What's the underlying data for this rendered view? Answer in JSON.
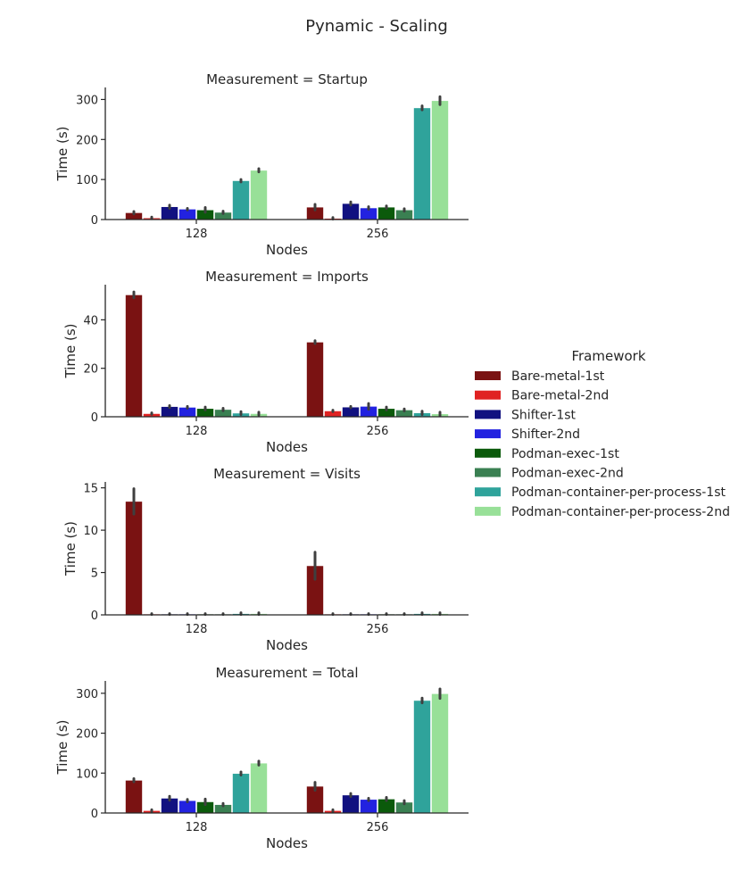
{
  "chart_data": {
    "type": "bar",
    "title": "Pynamic - Scaling",
    "legend": {
      "title": "Framework",
      "placement": "right",
      "entries": [
        "Bare-metal-1st",
        "Bare-metal-2nd",
        "Shifter-1st",
        "Shifter-2nd",
        "Podman-exec-1st",
        "Podman-exec-2nd",
        "Podman-container-per-process-1st",
        "Podman-container-per-process-2nd"
      ]
    },
    "colors": [
      "#7a1212",
      "#e02222",
      "#111180",
      "#2222e0",
      "#0b5a0b",
      "#3a8052",
      "#2fa39b",
      "#98e098"
    ],
    "error_bar_color": "#3f3f3f",
    "grid": false,
    "panels": [
      {
        "title": "Measurement = Startup",
        "xlabel": "Nodes",
        "ylabel": "Time (s)",
        "categories": [
          "128",
          "256"
        ],
        "ylim": [
          0,
          330
        ],
        "yticks": [
          0,
          100,
          200,
          300
        ],
        "values": [
          [
            17,
            4,
            32,
            26,
            24,
            18,
            97,
            123
          ],
          [
            31,
            3,
            40,
            29,
            31,
            24,
            279,
            297
          ]
        ],
        "errors": [
          [
            3,
            2,
            4,
            2,
            6,
            3,
            3,
            4
          ],
          [
            7,
            2,
            4,
            3,
            3,
            3,
            5,
            10
          ]
        ]
      },
      {
        "title": "Measurement = Imports",
        "xlabel": "Nodes",
        "ylabel": "Time (s)",
        "categories": [
          "128",
          "256"
        ],
        "ylim": [
          0,
          54.5
        ],
        "yticks": [
          0,
          20,
          40
        ],
        "values": [
          [
            50.3,
            1.3,
            4.2,
            3.9,
            3.4,
            3.0,
            1.5,
            1.3
          ],
          [
            30.8,
            2.4,
            4.0,
            4.3,
            3.4,
            2.8,
            1.6,
            1.2
          ]
        ],
        "errors": [
          [
            1.2,
            0.3,
            0.4,
            0.4,
            0.6,
            0.5,
            0.6,
            0.6
          ],
          [
            0.6,
            0.3,
            0.3,
            1.2,
            0.6,
            0.4,
            0.7,
            0.7
          ]
        ]
      },
      {
        "title": "Measurement = Visits",
        "xlabel": "Nodes",
        "ylabel": "Time (s)",
        "categories": [
          "128",
          "256"
        ],
        "ylim": [
          0,
          15.7
        ],
        "yticks": [
          0,
          5,
          10,
          15
        ],
        "values": [
          [
            13.4,
            0.1,
            0.1,
            0.1,
            0.1,
            0.1,
            0.15,
            0.15
          ],
          [
            5.8,
            0.1,
            0.1,
            0.1,
            0.1,
            0.1,
            0.15,
            0.15
          ]
        ],
        "errors": [
          [
            1.5,
            0.05,
            0.05,
            0.05,
            0.05,
            0.05,
            0.1,
            0.1
          ],
          [
            1.6,
            0.05,
            0.05,
            0.05,
            0.05,
            0.05,
            0.1,
            0.1
          ]
        ]
      },
      {
        "title": "Measurement = Total",
        "xlabel": "Nodes",
        "ylabel": "Time (s)",
        "categories": [
          "128",
          "256"
        ],
        "ylim": [
          0,
          331
        ],
        "yticks": [
          0,
          100,
          200,
          300
        ],
        "values": [
          [
            82,
            6,
            37,
            31,
            28,
            21,
            99,
            125
          ],
          [
            67,
            6,
            45,
            34,
            35,
            27,
            282,
            299
          ]
        ],
        "errors": [
          [
            4,
            2,
            5,
            3,
            7,
            3,
            4,
            5
          ],
          [
            10,
            2,
            4,
            3,
            4,
            4,
            6,
            12
          ]
        ]
      }
    ]
  }
}
